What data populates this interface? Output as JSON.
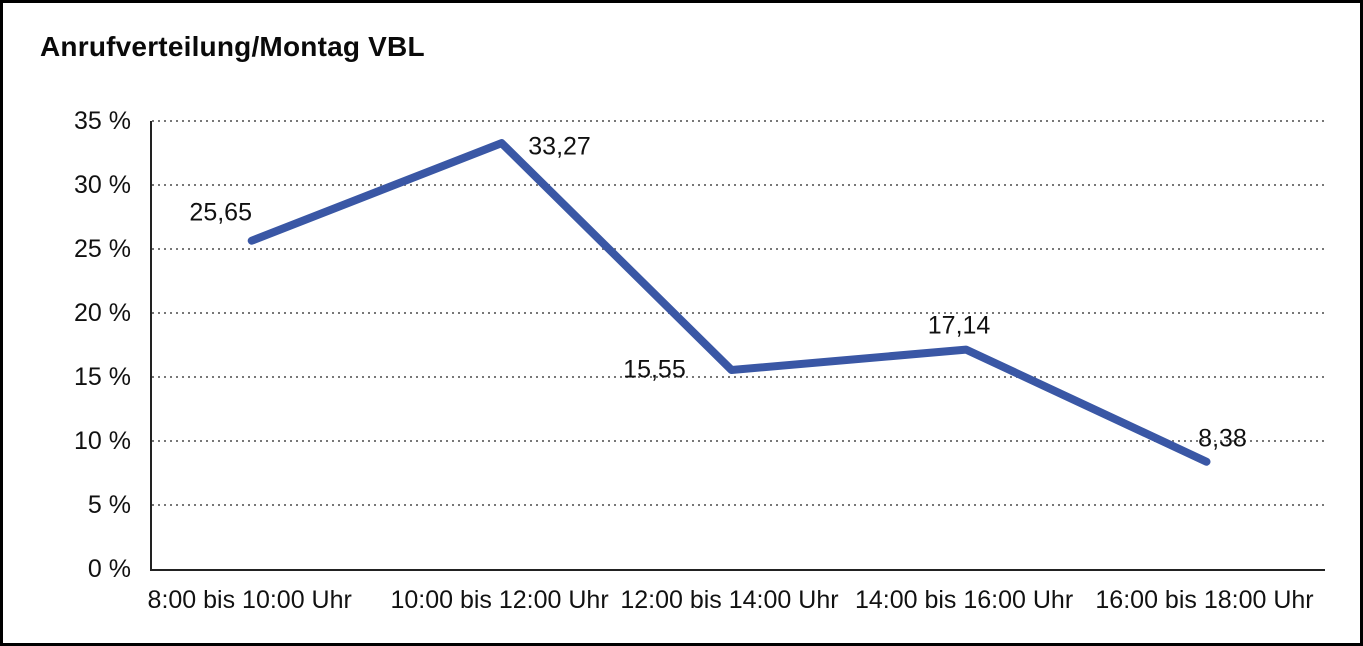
{
  "chart_data": {
    "type": "line",
    "title": "Anrufverteilung/Montag VBL",
    "categories": [
      "8:00 bis 10:00 Uhr",
      "10:00 bis 12:00 Uhr",
      "12:00 bis 14:00 Uhr",
      "14:00 bis 16:00 Uhr",
      "16:00 bis 18:00 Uhr"
    ],
    "series": [
      {
        "name": "Anrufverteilung",
        "values": [
          25.65,
          33.27,
          15.55,
          17.14,
          8.38
        ]
      }
    ],
    "value_labels": [
      "25,65",
      "33,27",
      "15,55",
      "17,14",
      "8,38"
    ],
    "y_ticks": [
      "35 %",
      "30 %",
      "25 %",
      "20 %",
      "15 %",
      "10 %",
      "5 %",
      "0 %"
    ],
    "ylabel": "",
    "xlabel": "",
    "ylim": [
      0,
      35
    ],
    "y_step": 5,
    "grid": "dotted-horizontal",
    "legend": "none",
    "line_color": "#3A57A5",
    "axis_color": "#222222",
    "text_color": "#111111",
    "background": "#ffffff"
  }
}
